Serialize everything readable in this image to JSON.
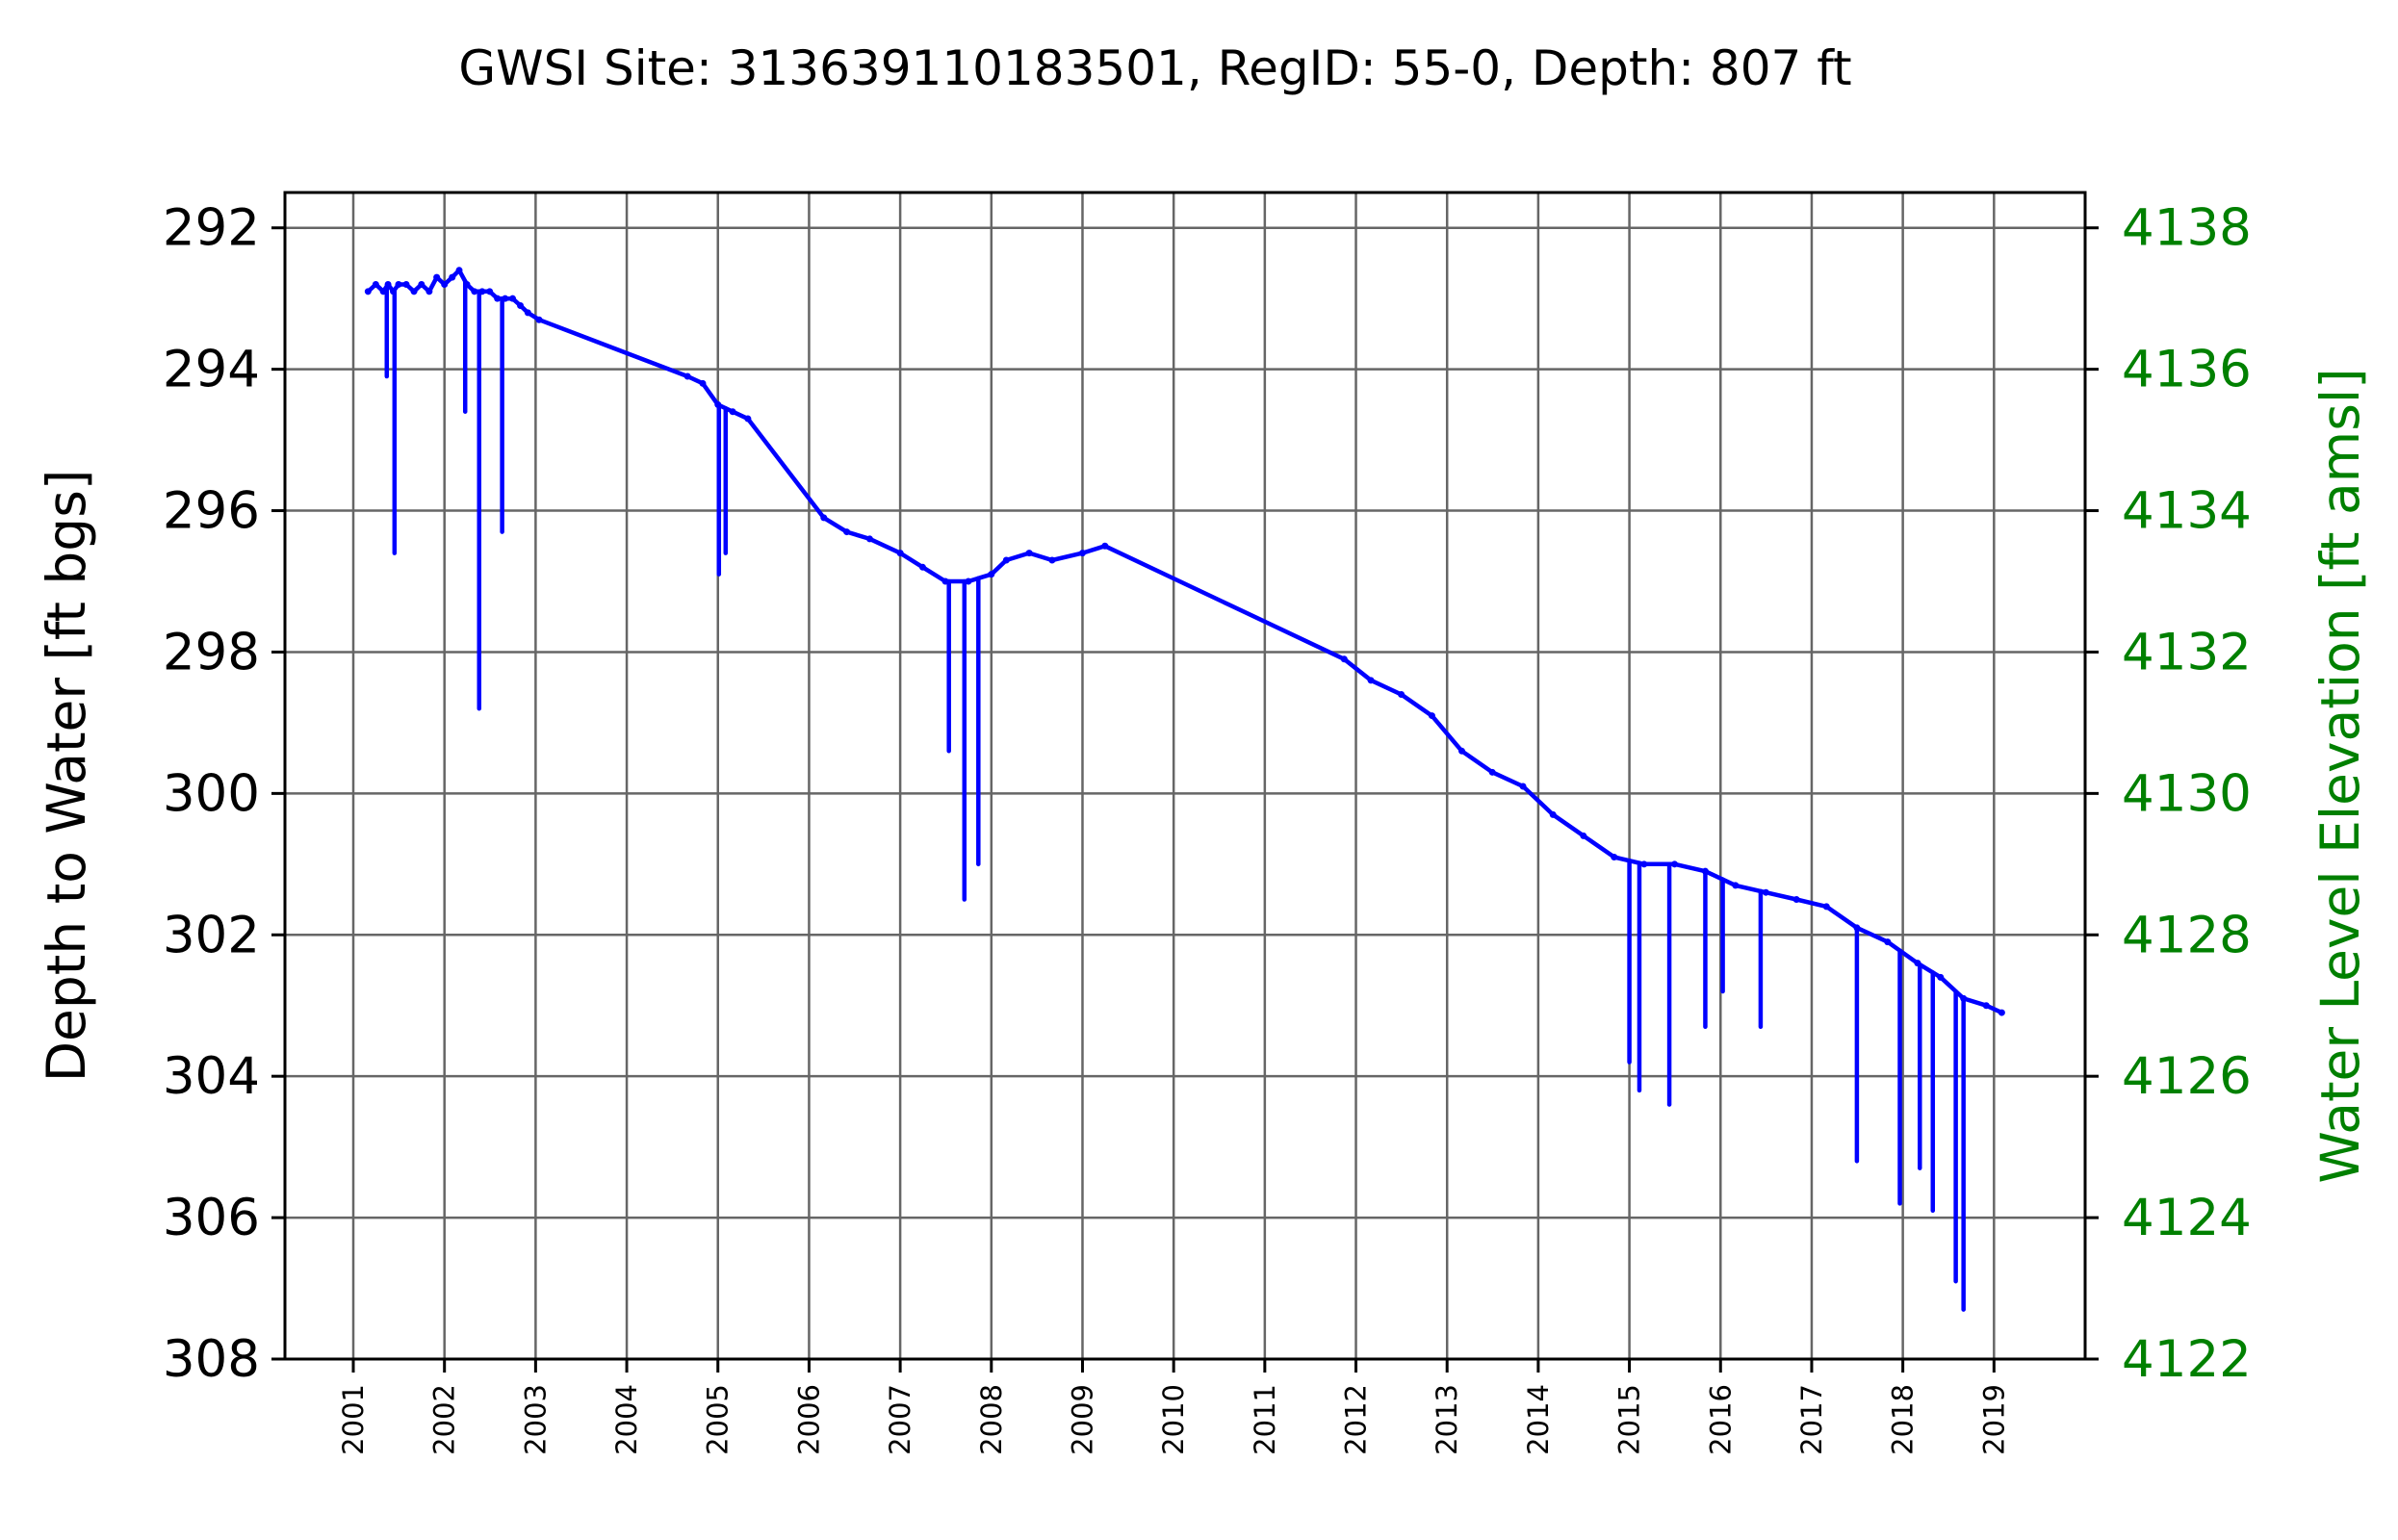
{
  "chart_data": {
    "type": "line",
    "title": "GWSI Site: 313639110183501, RegID: 55-0, Depth: 807 ft",
    "ylabel": "Depth to Water [ft bgs]",
    "ylabel_right": "Water Level Elevation [ft amsl]",
    "ylim": [
      308,
      291.5
    ],
    "ylim_right": [
      4122,
      4138.5
    ],
    "xlim": [
      2000.25,
      2020.0
    ],
    "yticks": [
      "292",
      "294",
      "296",
      "298",
      "300",
      "302",
      "304",
      "306",
      "308"
    ],
    "yticks_right": [
      "4138",
      "4136",
      "4134",
      "4132",
      "4130",
      "4128",
      "4126",
      "4124",
      "4122"
    ],
    "xticks": [
      "2001",
      "2002",
      "2003",
      "2004",
      "2005",
      "2006",
      "2007",
      "2008",
      "2009",
      "2010",
      "2011",
      "2012",
      "2013",
      "2014",
      "2015",
      "2016",
      "2017",
      "2018",
      "2019"
    ],
    "grid": true,
    "colors": {
      "series": "#0000ff",
      "right_axis": "#008000",
      "grid": "#666666"
    },
    "series": [
      {
        "x": [
          "2001-03-01",
          "2001-04-01",
          "2001-05-01",
          "2001-05-20",
          "2001-06-10",
          "2001-07-01",
          "2001-08-01",
          "2001-09-01",
          "2001-10-01",
          "2001-11-01",
          "2001-12-01",
          "2002-01-01",
          "2002-02-01",
          "2002-03-01",
          "2002-04-01",
          "2002-05-01",
          "2002-06-01",
          "2002-07-01",
          "2002-08-01",
          "2002-09-01",
          "2002-10-01",
          "2002-11-01",
          "2002-12-01",
          "2003-01-15",
          "2004-09-01",
          "2004-11-01",
          "2005-01-01",
          "2005-03-01",
          "2005-05-01",
          "2006-03-01",
          "2006-06-01",
          "2006-09-01",
          "2007-01-01",
          "2007-04-01",
          "2007-07-01",
          "2007-10-01",
          "2008-01-01",
          "2008-03-01",
          "2008-06-01",
          "2008-09-01",
          "2009-01-01",
          "2009-04-01",
          "2011-11-15",
          "2012-03-01",
          "2012-07-01",
          "2012-11-01",
          "2013-03-01",
          "2013-07-01",
          "2013-11-01",
          "2014-03-01",
          "2014-07-01",
          "2014-11-01",
          "2015-03-01",
          "2015-07-01",
          "2015-11-01",
          "2016-03-01",
          "2016-07-01",
          "2016-11-01",
          "2017-03-01",
          "2017-07-01",
          "2017-11-01",
          "2018-03-01",
          "2018-06-01",
          "2018-09-01",
          "2018-12-01",
          "2019-02-01"
        ],
        "values": [
          292.9,
          292.8,
          292.9,
          292.8,
          292.9,
          292.8,
          292.8,
          292.9,
          292.8,
          292.9,
          292.7,
          292.8,
          292.7,
          292.6,
          292.8,
          292.9,
          292.9,
          292.9,
          293.0,
          293.0,
          293.0,
          293.1,
          293.2,
          293.3,
          294.1,
          294.2,
          294.5,
          294.6,
          294.7,
          296.1,
          296.3,
          296.4,
          296.6,
          296.8,
          297.0,
          297.0,
          296.9,
          296.7,
          296.6,
          296.7,
          296.6,
          296.5,
          298.1,
          298.4,
          298.6,
          298.9,
          299.4,
          299.7,
          299.9,
          300.3,
          300.6,
          300.9,
          301.0,
          301.0,
          301.1,
          301.3,
          301.4,
          301.5,
          301.6,
          301.9,
          302.1,
          302.4,
          302.6,
          302.9,
          303.0,
          303.1
        ]
      },
      {
        "x": [
          "2001-05-15",
          "2001-06-15",
          "2002-03-25",
          "2002-05-20",
          "2002-08-20",
          "2005-01-05",
          "2005-02-01",
          "2007-07-15",
          "2007-09-15",
          "2007-11-10",
          "2015-01-01",
          "2015-02-10",
          "2015-06-10",
          "2015-11-01",
          "2016-01-10",
          "2016-06-10",
          "2017-07-01",
          "2017-12-20",
          "2018-03-10",
          "2018-05-01",
          "2018-08-01",
          "2018-09-01"
        ],
        "values": [
          294.1,
          296.6,
          294.6,
          298.8,
          296.3,
          296.9,
          296.6,
          299.4,
          301.5,
          301.0,
          303.8,
          304.2,
          304.4,
          303.3,
          302.8,
          303.3,
          305.2,
          305.8,
          305.3,
          305.9,
          306.9,
          307.3
        ]
      }
    ]
  }
}
